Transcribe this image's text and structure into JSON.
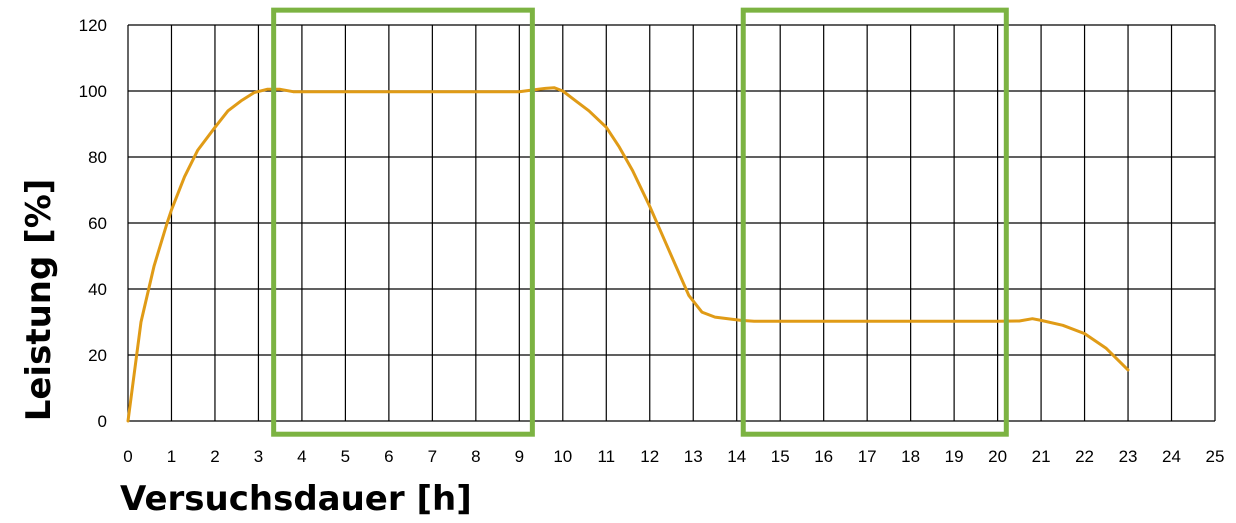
{
  "chart_data": {
    "type": "line",
    "title": "",
    "xlabel": "Versuchsdauer [h]",
    "ylabel": "Leistung [%]",
    "xlim": [
      0,
      25
    ],
    "ylim": [
      0,
      120
    ],
    "x_ticks": [
      0,
      1,
      2,
      3,
      4,
      5,
      6,
      7,
      8,
      9,
      10,
      11,
      12,
      13,
      14,
      15,
      16,
      17,
      18,
      19,
      20,
      21,
      22,
      23,
      24,
      25
    ],
    "y_ticks": [
      0,
      20,
      40,
      60,
      80,
      100,
      120
    ],
    "grid": true,
    "legend": "none",
    "series": [
      {
        "color": "#E09B16",
        "points": [
          [
            0,
            0
          ],
          [
            0.3,
            30
          ],
          [
            0.6,
            47
          ],
          [
            0.9,
            60
          ],
          [
            1.0,
            64
          ],
          [
            1.3,
            74
          ],
          [
            1.6,
            82
          ],
          [
            2.0,
            89
          ],
          [
            2.3,
            94
          ],
          [
            2.6,
            97
          ],
          [
            2.9,
            99.5
          ],
          [
            3.2,
            100.5
          ],
          [
            3.5,
            100.5
          ],
          [
            3.8,
            99.8
          ],
          [
            5,
            99.8
          ],
          [
            6,
            99.8
          ],
          [
            7,
            99.8
          ],
          [
            8,
            99.8
          ],
          [
            9,
            99.8
          ],
          [
            9.3,
            100.3
          ],
          [
            9.6,
            100.8
          ],
          [
            9.8,
            101
          ],
          [
            10.0,
            100
          ],
          [
            10.3,
            97
          ],
          [
            10.6,
            94
          ],
          [
            11.0,
            89
          ],
          [
            11.3,
            83
          ],
          [
            11.6,
            76
          ],
          [
            12.0,
            65
          ],
          [
            12.3,
            56
          ],
          [
            12.6,
            47
          ],
          [
            12.9,
            38
          ],
          [
            13.2,
            33
          ],
          [
            13.5,
            31.5
          ],
          [
            13.8,
            31
          ],
          [
            14.1,
            30.5
          ],
          [
            14.4,
            30.2
          ],
          [
            15,
            30.2
          ],
          [
            16,
            30.2
          ],
          [
            17,
            30.2
          ],
          [
            18,
            30.2
          ],
          [
            19,
            30.2
          ],
          [
            20,
            30.2
          ],
          [
            20.5,
            30.3
          ],
          [
            20.8,
            31
          ],
          [
            21.0,
            30.5
          ],
          [
            21.5,
            29
          ],
          [
            22.0,
            26.5
          ],
          [
            22.5,
            22
          ],
          [
            23,
            15.5
          ]
        ]
      }
    ],
    "highlight_boxes": [
      {
        "x0": 3.35,
        "x1": 9.3,
        "y0": -4,
        "y1": 124.5,
        "color": "#7CB342"
      },
      {
        "x0": 14.15,
        "x1": 20.2,
        "y0": -4,
        "y1": 124.5,
        "color": "#7CB342"
      }
    ]
  }
}
